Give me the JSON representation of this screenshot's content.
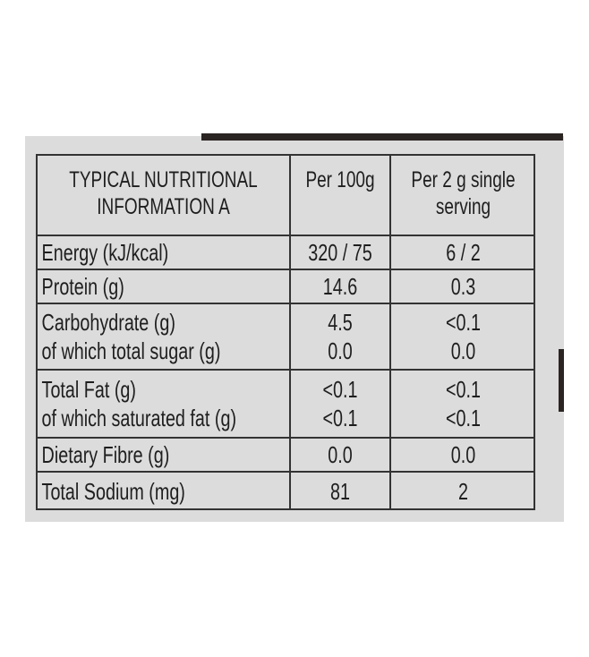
{
  "table": {
    "header": [
      [
        "TYPICAL NUTRITIONAL",
        "INFORMATION A"
      ],
      [
        "Per 100g"
      ],
      [
        "Per 2 g single",
        "serving"
      ]
    ],
    "rows": [
      [
        [
          "Energy (kJ/kcal)"
        ],
        [
          "320 / 75"
        ],
        [
          "6 / 2"
        ]
      ],
      [
        [
          "Protein (g)"
        ],
        [
          "14.6"
        ],
        [
          "0.3"
        ]
      ],
      [
        [
          "Carbohydrate (g)",
          "of which total sugar (g)"
        ],
        [
          "4.5",
          "0.0"
        ],
        [
          "<0.1",
          "0.0"
        ]
      ],
      [
        [
          "Total Fat (g)",
          "of which saturated fat (g)"
        ],
        [
          "<0.1",
          "<0.1"
        ],
        [
          "<0.1",
          "<0.1"
        ]
      ],
      [
        [
          "Dietary Fibre (g)"
        ],
        [
          "0.0"
        ],
        [
          "0.0"
        ]
      ],
      [
        [
          "Total Sodium (mg)"
        ],
        [
          "81"
        ],
        [
          "2"
        ]
      ]
    ]
  }
}
